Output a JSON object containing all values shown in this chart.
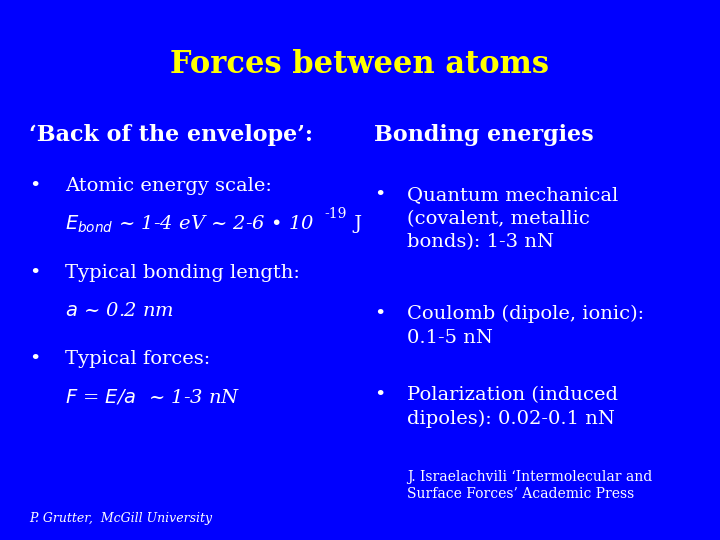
{
  "title": "Forces between atoms",
  "title_color": "#FFFF00",
  "background_color": "#0000FF",
  "text_color": "#FFFFFF",
  "title_fontsize": 22,
  "header_fontsize": 16,
  "content_fontsize": 14,
  "small_fontsize": 10,
  "footer_fontsize": 9,
  "left_header": "‘Back of the envelope’:",
  "right_header": "Bonding energies:",
  "reference": "J. Israelachvili ‘Intermolecular and\nSurface Forces’ Academic Press",
  "footer": "P. Grutter,  McGill University"
}
